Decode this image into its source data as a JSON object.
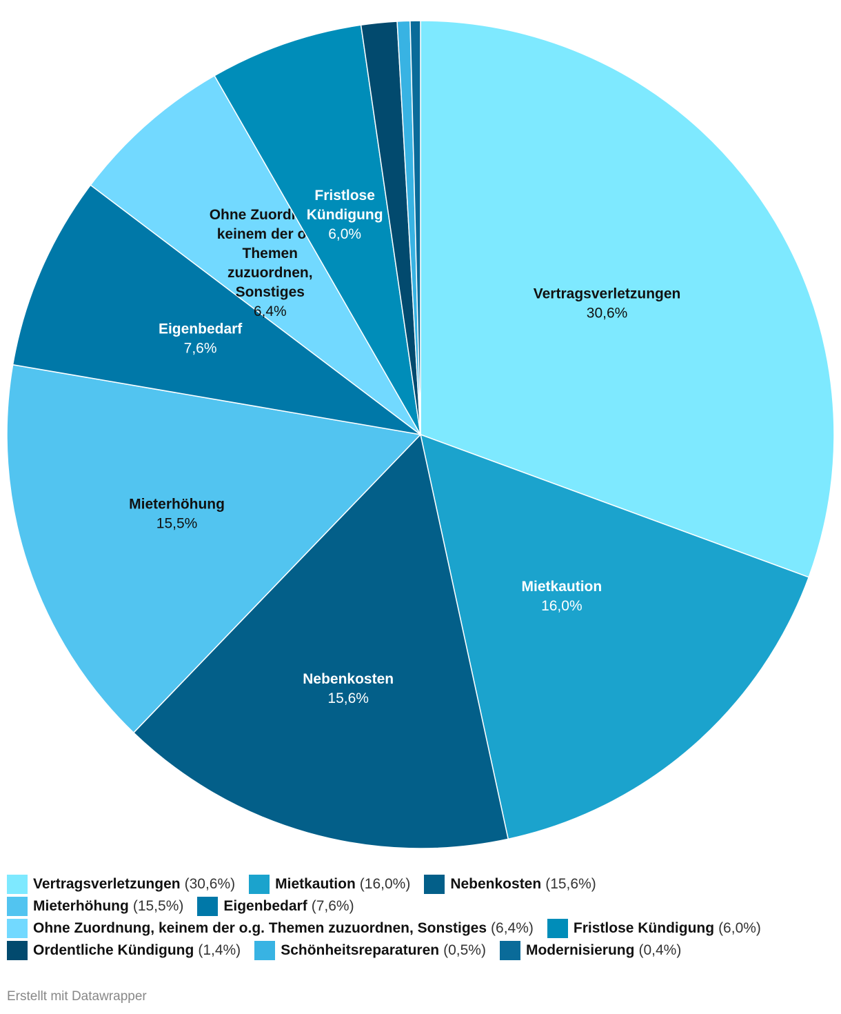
{
  "chart_data": {
    "type": "pie",
    "slices": [
      {
        "name": "Vertragsverletzungen",
        "value": 30.6,
        "value_label": "30,6%",
        "color": "#7ee9ff",
        "label_lines": [
          "Vertragsverletzungen"
        ],
        "label_dark": true
      },
      {
        "name": "Mietkaution",
        "value": 16.0,
        "value_label": "16,0%",
        "color": "#1ba3cd",
        "label_lines": [
          "Mietkaution"
        ],
        "label_dark": false
      },
      {
        "name": "Nebenkosten",
        "value": 15.6,
        "value_label": "15,6%",
        "color": "#035f89",
        "label_lines": [
          "Nebenkosten"
        ],
        "label_dark": false
      },
      {
        "name": "Mieterhöhung",
        "value": 15.5,
        "value_label": "15,5%",
        "color": "#52c4f0",
        "label_lines": [
          "Mieterhöhung"
        ],
        "label_dark": true
      },
      {
        "name": "Eigenbedarf",
        "value": 7.6,
        "value_label": "7,6%",
        "color": "#0078a8",
        "label_lines": [
          "Eigenbedarf"
        ],
        "label_dark": false
      },
      {
        "name": "Ohne Zuordnung, keinem der o.g. Themen zuzuordnen, Sonstiges",
        "value": 6.4,
        "value_label": "6,4%",
        "color": "#72d9ff",
        "label_lines": [
          "Ohne Zuordnung,",
          "keinem der o.g.",
          "Themen",
          "zuzuordnen,",
          "Sonstiges"
        ],
        "label_dark": true
      },
      {
        "name": "Fristlose Kündigung",
        "value": 6.0,
        "value_label": "6,0%",
        "color": "#008db9",
        "label_lines": [
          "Fristlose",
          "Kündigung"
        ],
        "label_dark": false
      },
      {
        "name": "Ordentliche Kündigung",
        "value": 1.4,
        "value_label": "1,4%",
        "color": "#024a6e",
        "label_lines": [],
        "label_dark": false
      },
      {
        "name": "Schönheitsreparaturen",
        "value": 0.5,
        "value_label": "0,5%",
        "color": "#38b3e3",
        "label_lines": [],
        "label_dark": false
      },
      {
        "name": "Modernisierung",
        "value": 0.4,
        "value_label": "0,4%",
        "color": "#0a6b99",
        "label_lines": [],
        "label_dark": false
      }
    ],
    "legend_rows": [
      [
        0,
        1,
        2
      ],
      [
        3,
        4
      ],
      [
        5,
        6
      ],
      [
        7,
        8,
        9
      ]
    ],
    "legend_placement": "bottom"
  },
  "footer": {
    "credit": "Erstellt mit Datawrapper"
  }
}
